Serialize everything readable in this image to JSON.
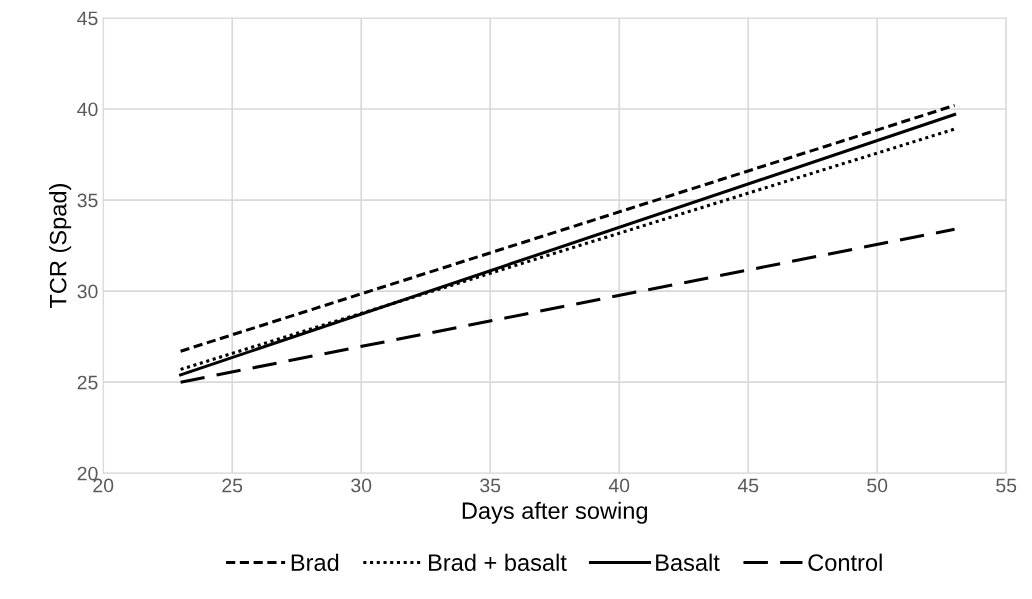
{
  "chart_data": {
    "type": "line",
    "xlabel": "Days after sowing",
    "ylabel": "TCR (Spad)",
    "x": [
      23,
      53
    ],
    "series": [
      {
        "name": "Brad",
        "color": "#000000",
        "values": [
          26.7,
          40.2
        ],
        "line_style": "dashed"
      },
      {
        "name": "Brad + basalt",
        "color": "#000000",
        "values": [
          25.7,
          38.9
        ],
        "line_style": "dotted"
      },
      {
        "name": "Basalt",
        "color": "#000000",
        "values": [
          25.4,
          39.7
        ],
        "line_style": "solid"
      },
      {
        "name": "Control",
        "color": "#000000",
        "values": [
          25.0,
          33.4
        ],
        "line_style": "longdash"
      }
    ],
    "xlim": [
      20,
      55
    ],
    "xticks": [
      20,
      25,
      30,
      35,
      40,
      45,
      50,
      55
    ],
    "ylim": [
      20,
      45
    ],
    "yticks": [
      20,
      25,
      30,
      35,
      40,
      45
    ],
    "grid": true,
    "legend": "bottom",
    "marker": "none"
  }
}
